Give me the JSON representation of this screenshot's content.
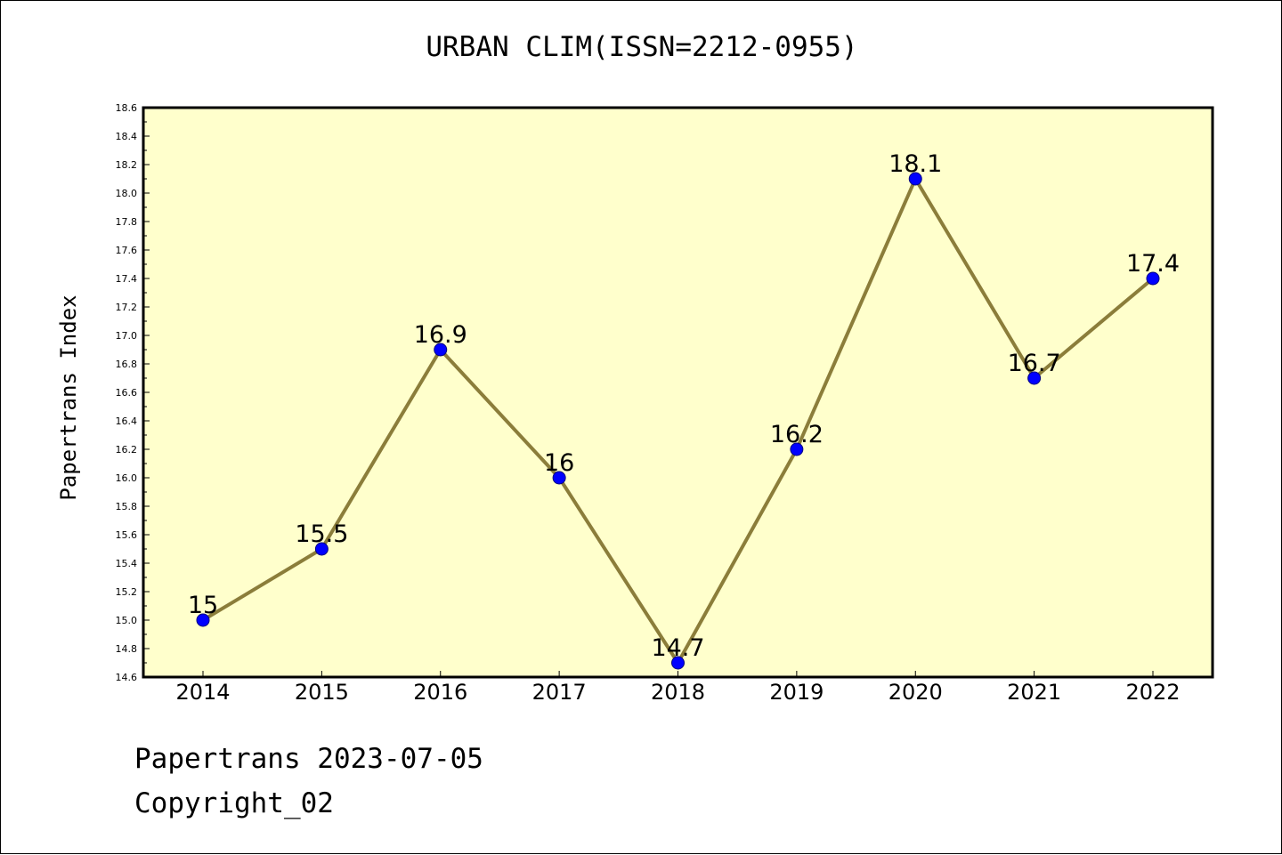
{
  "chart_data": {
    "type": "line",
    "title": "URBAN CLIM(ISSN=2212-0955)",
    "xlabel": "",
    "ylabel": "Papertrans Index",
    "categories": [
      "2014",
      "2015",
      "2016",
      "2017",
      "2018",
      "2019",
      "2020",
      "2021",
      "2022"
    ],
    "series": [
      {
        "values": [
          15,
          15.5,
          16.9,
          16,
          14.7,
          16.2,
          18.1,
          16.7,
          17.4
        ],
        "data_labels": [
          "15",
          "15.5",
          "16.9",
          "16",
          "14.7",
          "16.2",
          "18.1",
          "16.7",
          "17.4"
        ]
      }
    ],
    "ylim": [
      14.6,
      18.6
    ],
    "y_ticks": [
      "14.6",
      "14.8",
      "15.0",
      "15.2",
      "15.4",
      "15.6",
      "15.8",
      "16.0",
      "16.2",
      "16.4",
      "16.6",
      "16.8",
      "17.0",
      "17.2",
      "17.4",
      "17.6",
      "17.8",
      "18.0",
      "18.2",
      "18.4",
      "18.6"
    ],
    "grid": false,
    "legend": "none",
    "colors": {
      "plot_background": "#ffffcc",
      "line": "#8b7d3a",
      "marker": "#0000ff"
    }
  },
  "footer": {
    "line1": "Papertrans 2023-07-05",
    "line2": "Copyright_02"
  }
}
